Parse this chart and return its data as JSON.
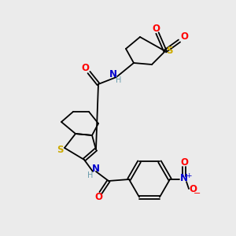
{
  "bg_color": "#ebebeb",
  "atom_colors": {
    "C": "#000000",
    "N": "#0000cc",
    "O": "#ff0000",
    "S": "#ccaa00",
    "H": "#6699aa",
    "plus": "#0000cc",
    "minus": "#ff0000"
  },
  "bond_color": "#000000",
  "figsize": [
    3.0,
    3.0
  ],
  "dpi": 100
}
